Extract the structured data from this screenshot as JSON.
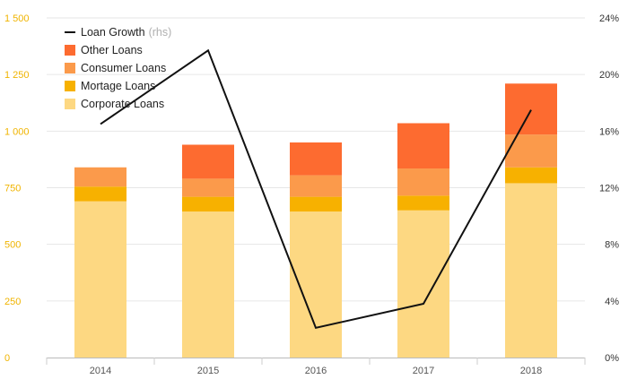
{
  "chart_data": {
    "type": "bar",
    "categories": [
      "2014",
      "2015",
      "2016",
      "2017",
      "2018"
    ],
    "series": [
      {
        "name": "Corporate Loans",
        "values": [
          690,
          645,
          645,
          650,
          770
        ],
        "color": "#fdd882"
      },
      {
        "name": "Mortage Loans",
        "values": [
          65,
          65,
          65,
          65,
          70
        ],
        "color": "#f7b100"
      },
      {
        "name": "Consumer Loans",
        "values": [
          85,
          80,
          95,
          120,
          145
        ],
        "color": "#fb9a4b"
      },
      {
        "name": "Other Loans",
        "values": [
          0,
          150,
          145,
          200,
          225
        ],
        "color": "#fd6b30"
      }
    ],
    "line": {
      "name": "Loan Growth",
      "suffix": "(rhs)",
      "values": [
        16.5,
        21.7,
        2.1,
        3.8,
        17.5
      ],
      "color": "#111111"
    },
    "ylim": [
      0,
      1500
    ],
    "y_ticks": [
      0,
      250,
      500,
      750,
      1000,
      1250,
      1500
    ],
    "y_tick_labels": [
      "0",
      "250",
      "500",
      "750",
      "1 000",
      "1 250",
      "1 500"
    ],
    "y2lim": [
      0,
      24
    ],
    "y2_ticks": [
      0,
      4,
      8,
      12,
      16,
      20,
      24
    ],
    "y2_tick_labels": [
      "0%",
      "4%",
      "8%",
      "12%",
      "16%",
      "20%",
      "24%"
    ],
    "grid": true,
    "legend_position": "top-left",
    "legend_order": [
      "Loan Growth",
      "Other Loans",
      "Consumer Loans",
      "Mortage Loans",
      "Corporate Loans"
    ],
    "title": "",
    "xlabel": "",
    "ylabel": ""
  }
}
